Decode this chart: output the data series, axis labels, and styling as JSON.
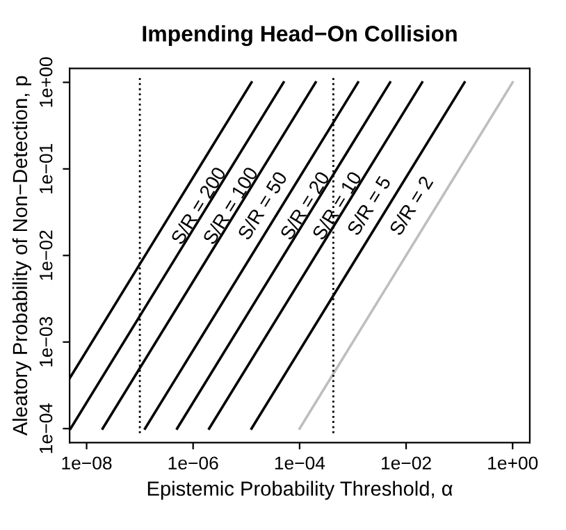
{
  "chart_data": {
    "type": "line",
    "title": "Impending Head−On Collision",
    "xlabel": "Epistemic Probability Threshold, α",
    "ylabel": "Aleatory Probability of Non−Detection, p",
    "log": "xy",
    "grid": false,
    "legend": false,
    "marker": "none",
    "line_style": "solid",
    "xlim": [
      4.8e-09,
      2.1
    ],
    "ylim": [
      6.9e-05,
      1.45
    ],
    "xticks": [
      {
        "value": 1e-08,
        "label": "1e−08"
      },
      {
        "value": 1e-06,
        "label": "1e−06"
      },
      {
        "value": 0.0001,
        "label": "1e−04"
      },
      {
        "value": 0.01,
        "label": "1e−02"
      },
      {
        "value": 1,
        "label": "1e+00"
      }
    ],
    "yticks": [
      {
        "value": 0.0001,
        "label": "1e−04"
      },
      {
        "value": 0.001,
        "label": "1e−03"
      },
      {
        "value": 0.01,
        "label": "1e−02"
      },
      {
        "value": 0.1,
        "label": "1e−01"
      },
      {
        "value": 1,
        "label": "1e+00"
      }
    ],
    "series": [
      {
        "name": "S/R = 200",
        "color": "#000000",
        "x": [
          4.8e-09,
          1.25e-05
        ],
        "values": [
          0.00038,
          1
        ]
      },
      {
        "name": "S/R = 100",
        "color": "#000000",
        "x": [
          5e-09,
          5e-05
        ],
        "values": [
          0.0001,
          1
        ]
      },
      {
        "name": "S/R = 50",
        "color": "#000000",
        "x": [
          2e-08,
          0.0002
        ],
        "values": [
          0.0001,
          1
        ]
      },
      {
        "name": "S/R = 20",
        "color": "#000000",
        "x": [
          1.25e-07,
          0.00125
        ],
        "values": [
          0.0001,
          1
        ]
      },
      {
        "name": "S/R = 10",
        "color": "#000000",
        "x": [
          5e-07,
          0.005
        ],
        "values": [
          0.0001,
          1
        ]
      },
      {
        "name": "S/R = 5",
        "color": "#000000",
        "x": [
          2e-06,
          0.02
        ],
        "values": [
          0.0001,
          1
        ]
      },
      {
        "name": "S/R = 2",
        "color": "#000000",
        "x": [
          1.25e-05,
          0.125
        ],
        "values": [
          0.0001,
          1
        ]
      },
      {
        "color": "#bebebe",
        "x": [
          0.0001,
          1
        ],
        "values": [
          0.0001,
          1
        ]
      }
    ],
    "ref_lines": [
      {
        "axis": "x",
        "value": 1e-07,
        "color": "#000000",
        "line_style": "dotted"
      },
      {
        "axis": "x",
        "value": 0.00043,
        "color": "#000000",
        "line_style": "dotted"
      }
    ]
  }
}
